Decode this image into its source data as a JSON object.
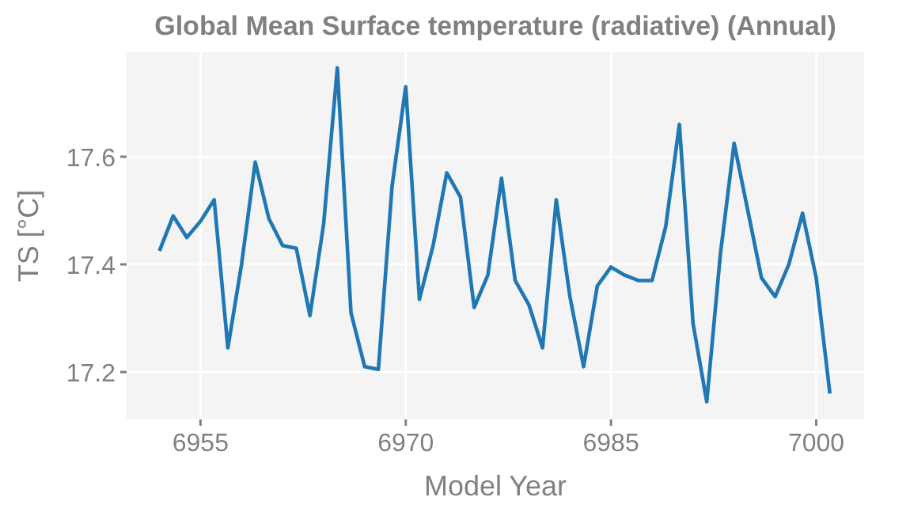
{
  "chart_data": {
    "type": "line",
    "title": "Global Mean Surface temperature (radiative) (Annual)",
    "xlabel": "Model Year",
    "ylabel": "TS [°C]",
    "x": [
      6952,
      6953,
      6954,
      6955,
      6956,
      6957,
      6958,
      6959,
      6960,
      6961,
      6962,
      6963,
      6964,
      6965,
      6966,
      6967,
      6968,
      6969,
      6970,
      6971,
      6972,
      6973,
      6974,
      6975,
      6976,
      6977,
      6978,
      6979,
      6980,
      6981,
      6982,
      6983,
      6984,
      6985,
      6986,
      6987,
      6988,
      6989,
      6990,
      6991,
      6992,
      6993,
      6994,
      6995,
      6996,
      6997,
      6998,
      6999,
      7000,
      7001
    ],
    "series": [
      {
        "color": "#1f77b4",
        "values": [
          17.425,
          17.49,
          17.45,
          17.48,
          17.52,
          17.245,
          17.4,
          17.59,
          17.485,
          17.435,
          17.43,
          17.305,
          17.475,
          17.765,
          17.31,
          17.21,
          17.205,
          17.545,
          17.73,
          17.335,
          17.435,
          17.57,
          17.525,
          17.32,
          17.38,
          17.56,
          17.37,
          17.325,
          17.245,
          17.52,
          17.34,
          17.21,
          17.36,
          17.395,
          17.38,
          17.37,
          17.37,
          17.47,
          17.66,
          17.29,
          17.145,
          17.42,
          17.625,
          17.5,
          17.375,
          17.34,
          17.4,
          17.495,
          17.375,
          17.16
        ]
      }
    ],
    "xlim": [
      6949.6,
      7003.5
    ],
    "xticks": [
      6955,
      6970,
      6985,
      7000
    ],
    "ylim": [
      17.112,
      17.794
    ],
    "yticks": [
      17.2,
      17.4,
      17.6
    ],
    "grid": true,
    "line_style": "solid",
    "marker": "none"
  }
}
